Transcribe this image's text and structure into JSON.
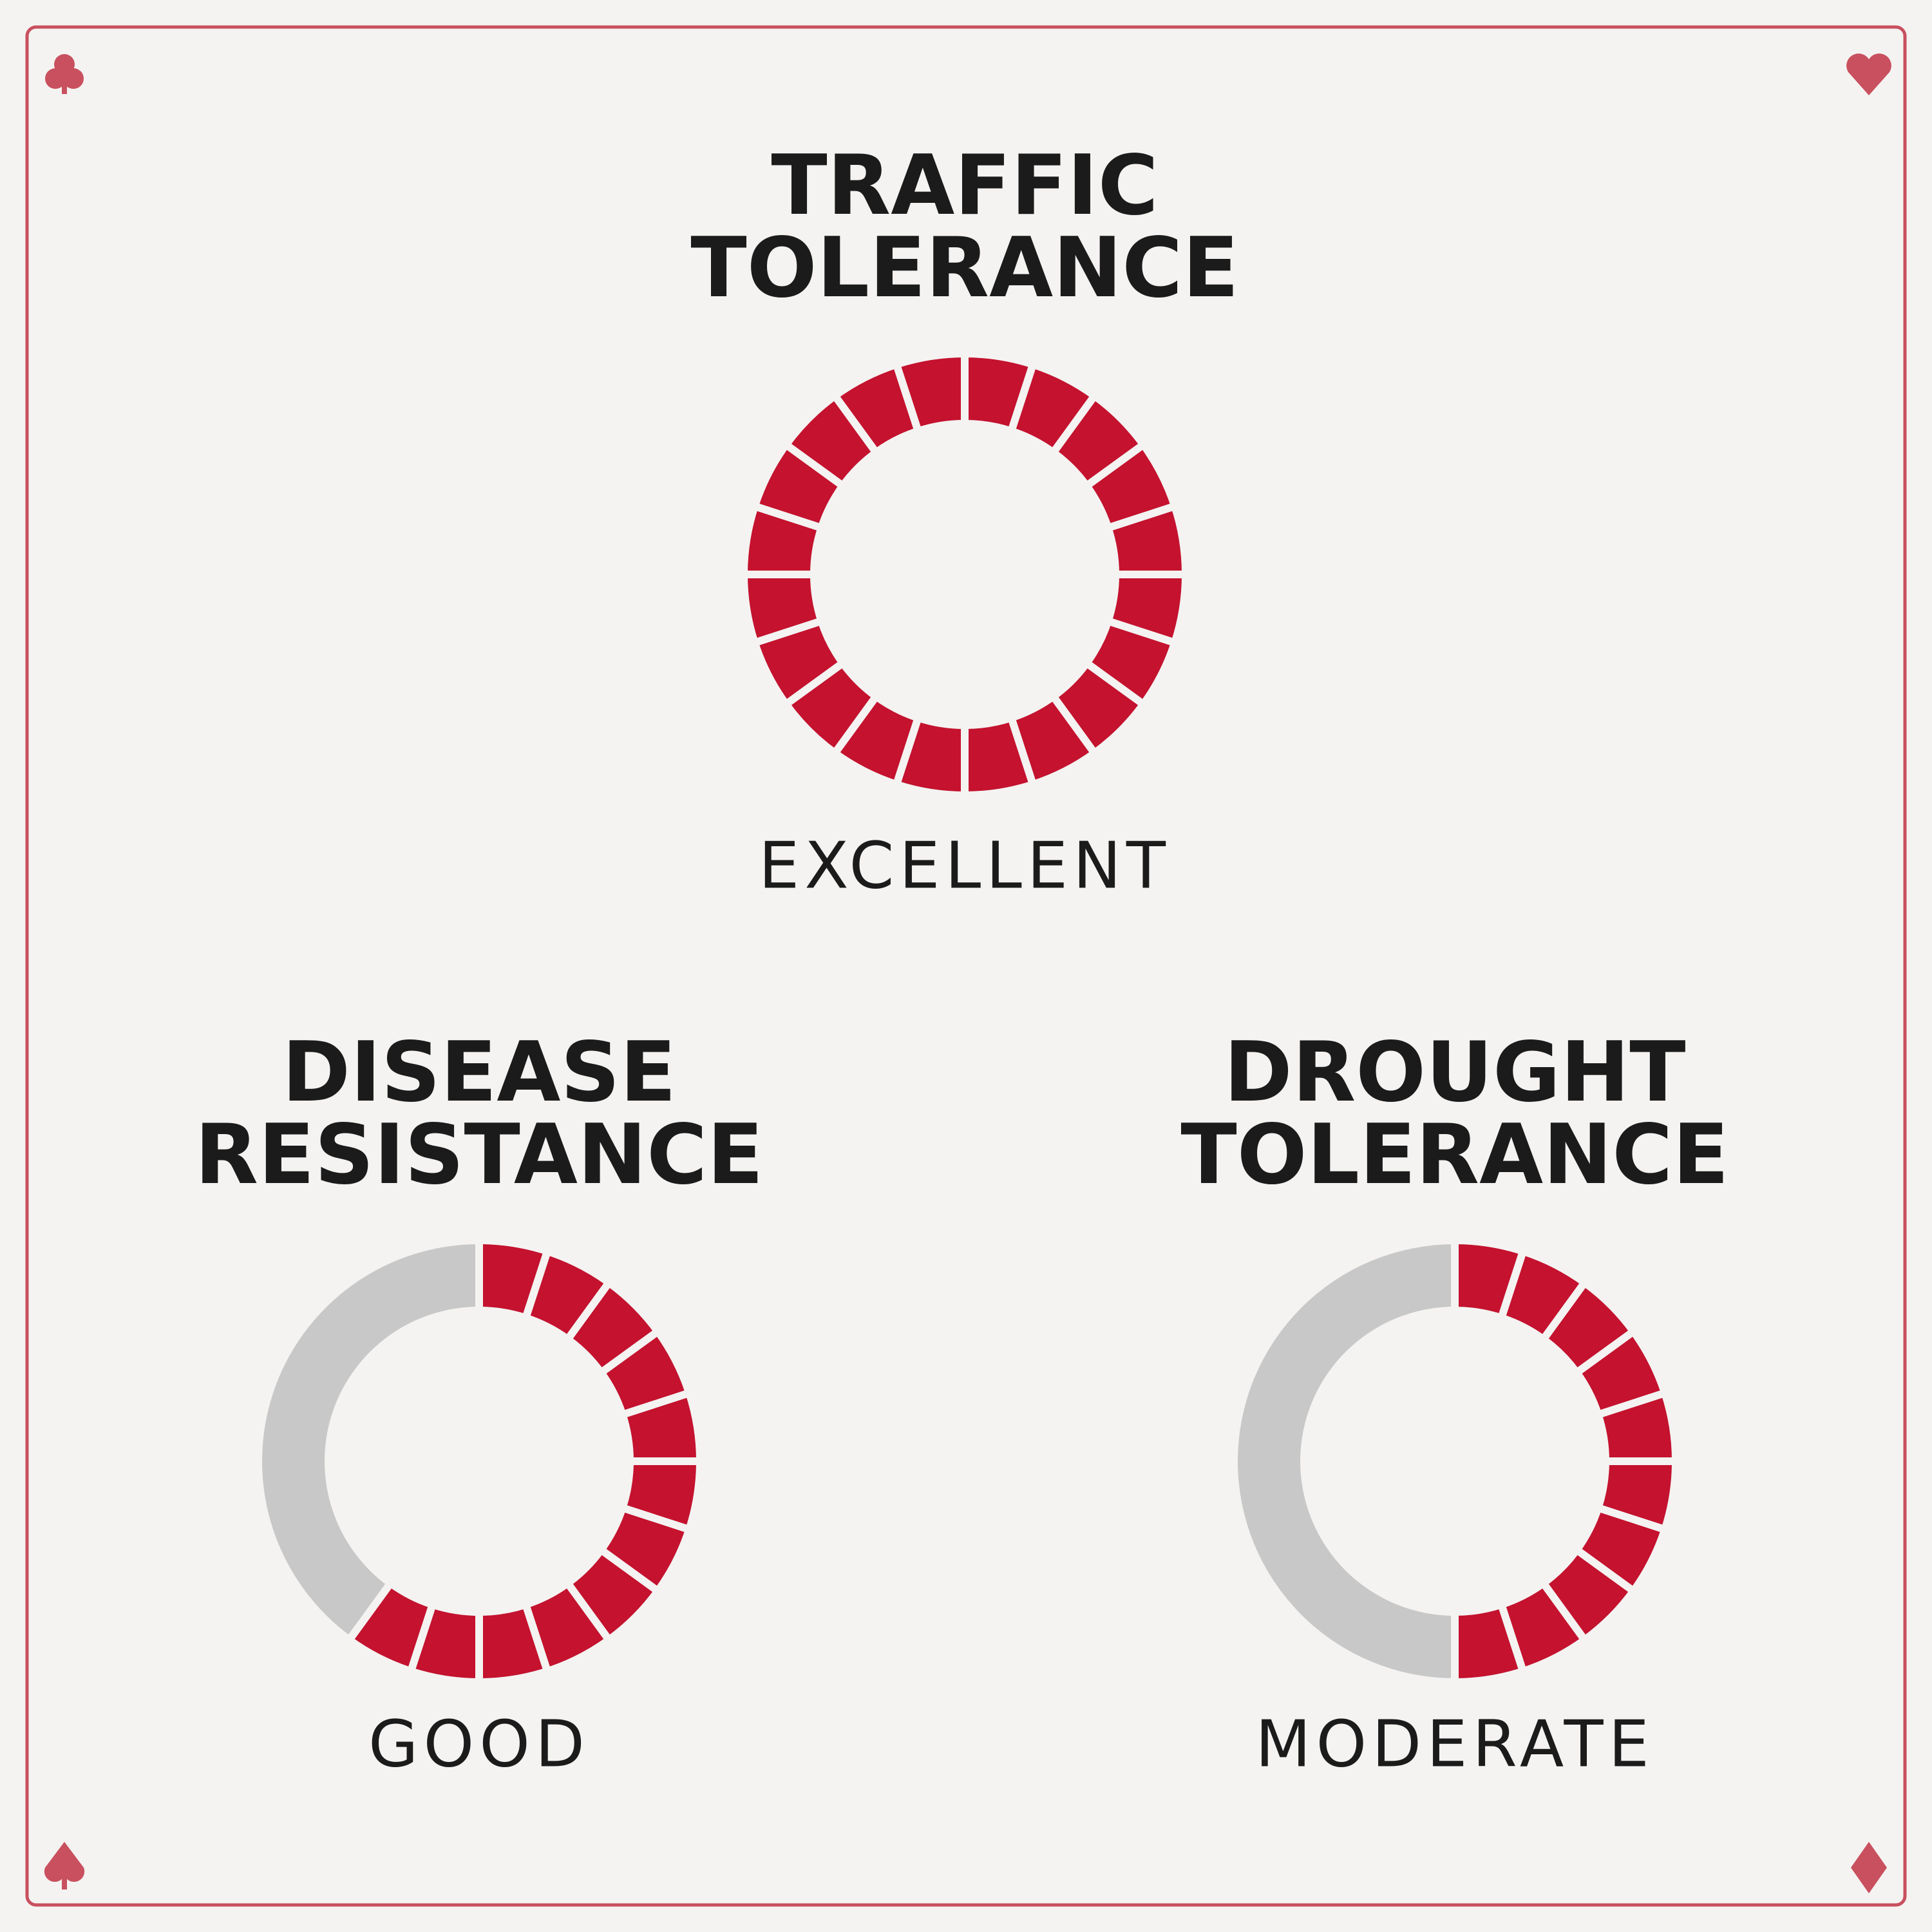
{
  "gauges": [
    {
      "title": [
        "TRAFFIC",
        "TOLERANCE"
      ],
      "rating": "EXCELLENT",
      "filled": 20,
      "total": 20
    },
    {
      "title": [
        "DISEASE",
        "RESISTANCE"
      ],
      "rating": "GOOD",
      "filled": 12,
      "total": 20
    },
    {
      "title": [
        "DROUGHT",
        "TOLERANCE"
      ],
      "rating": "MODERATE",
      "filled": 10,
      "total": 20
    }
  ]
}
